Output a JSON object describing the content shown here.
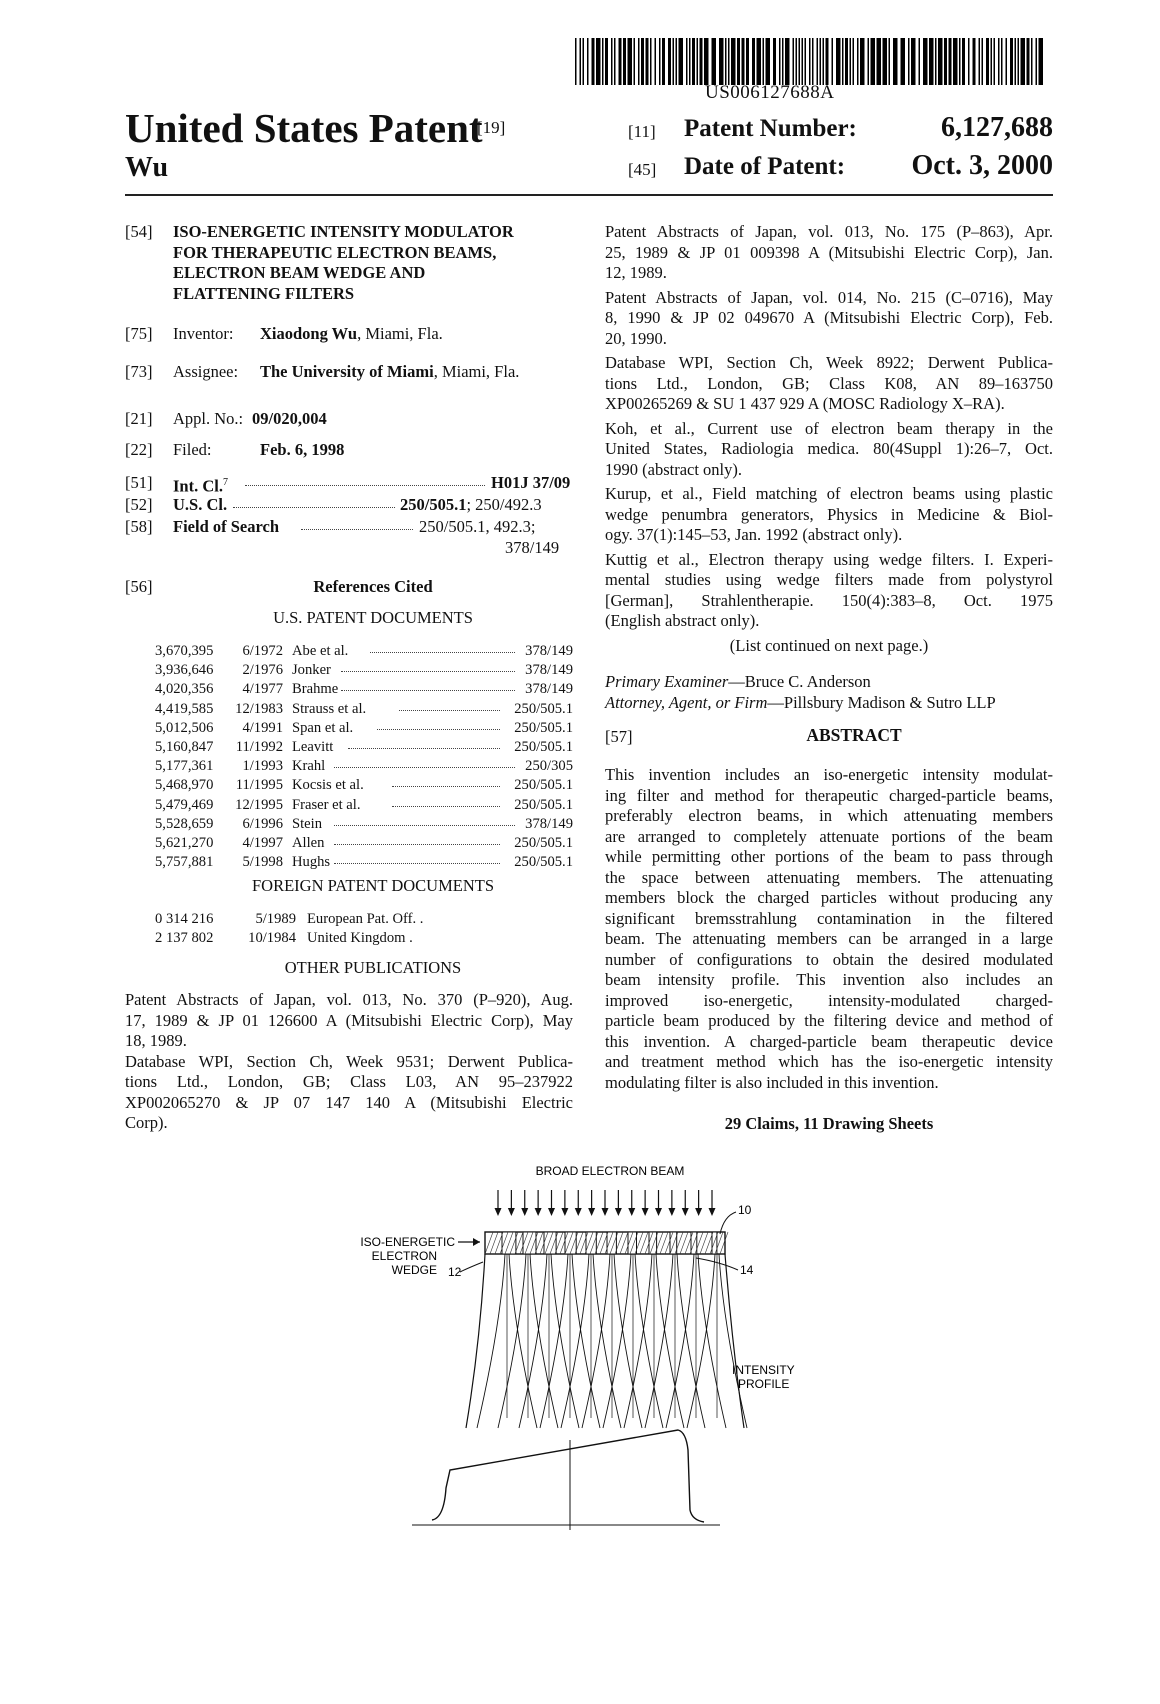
{
  "header": {
    "publication_number": "US006127688A",
    "title": "United States Patent",
    "title_code": "[19]",
    "inventor_surname": "Wu",
    "patent_number_code": "[11]",
    "patent_number_label": "Patent Number:",
    "patent_number": "6,127,688",
    "date_code": "[45]",
    "date_label": "Date of Patent:",
    "date": "Oct. 3, 2000"
  },
  "biblio": {
    "title_code": "[54]",
    "title_lines": [
      "ISO-ENERGETIC INTENSITY MODULATOR",
      "FOR THERAPEUTIC ELECTRON BEAMS,",
      "ELECTRON BEAM WEDGE AND",
      "FLATTENING FILTERS"
    ],
    "inventor_code": "[75]",
    "inventor_label": "Inventor:",
    "inventor_name": "Xiaodong Wu",
    "inventor_location": ", Miami, Fla.",
    "assignee_code": "[73]",
    "assignee_label": "Assignee:",
    "assignee_name": "The University of Miami",
    "assignee_location": ", Miami, Fla.",
    "appl_code": "[21]",
    "appl_label": "Appl. No.:",
    "appl_no": "09/020,004",
    "filed_code": "[22]",
    "filed_label": "Filed:",
    "filed_date": "Feb. 6, 1998",
    "intcl_code": "[51]",
    "intcl_label": "Int. Cl.",
    "intcl_sup": "7",
    "intcl_value": "H01J 37/09",
    "uscl_code": "[52]",
    "uscl_label": "U.S. Cl.",
    "uscl_bold": "250/505.1",
    "uscl_rest": "; 250/492.3",
    "search_code": "[58]",
    "search_label": "Field of Search",
    "search_value": "250/505.1, 492.3;",
    "search_value2": "378/149",
    "refs_code": "[56]",
    "refs_heading": "References Cited",
    "us_docs_heading": "U.S. PATENT DOCUMENTS",
    "foreign_heading": "FOREIGN PATENT DOCUMENTS",
    "other_heading": "OTHER PUBLICATIONS"
  },
  "us_patents": [
    {
      "num": "3,670,395",
      "date": "6/1972",
      "name": "Abe et al.",
      "cls": "378/149"
    },
    {
      "num": "3,936,646",
      "date": "2/1976",
      "name": "Jonker",
      "cls": "378/149"
    },
    {
      "num": "4,020,356",
      "date": "4/1977",
      "name": "Brahme",
      "cls": "378/149"
    },
    {
      "num": "4,419,585",
      "date": "12/1983",
      "name": "Strauss et al.",
      "cls": "250/505.1"
    },
    {
      "num": "5,012,506",
      "date": "4/1991",
      "name": "Span et al.",
      "cls": "250/505.1"
    },
    {
      "num": "5,160,847",
      "date": "11/1992",
      "name": "Leavitt",
      "cls": "250/505.1"
    },
    {
      "num": "5,177,361",
      "date": "1/1993",
      "name": "Krahl",
      "cls": "250/305"
    },
    {
      "num": "5,468,970",
      "date": "11/1995",
      "name": "Kocsis et al.",
      "cls": "250/505.1"
    },
    {
      "num": "5,479,469",
      "date": "12/1995",
      "name": "Fraser et al.",
      "cls": "250/505.1"
    },
    {
      "num": "5,528,659",
      "date": "6/1996",
      "name": "Stein",
      "cls": "378/149"
    },
    {
      "num": "5,621,270",
      "date": "4/1997",
      "name": "Allen",
      "cls": "250/505.1"
    },
    {
      "num": "5,757,881",
      "date": "5/1998",
      "name": "Hughs",
      "cls": "250/505.1"
    }
  ],
  "foreign_patents": [
    {
      "num": "0 314 216",
      "date": "5/1989",
      "name": "European Pat. Off. ."
    },
    {
      "num": "2 137 802",
      "date": "10/1984",
      "name": "United Kingdom ."
    }
  ],
  "other_pubs_left": [
    [
      "Patent Abstracts of Japan, vol. 013, No. 370 (P–920), Aug.",
      "17, 1989 & JP 01 126600 A (Mitsubishi Electric Corp), May",
      "18, 1989."
    ],
    [
      "Database WPI, Section Ch, Week 9531; Derwent Publica-",
      "tions Ltd., London, GB; Class L03, AN 95–237922",
      "XP002065270 & JP 07 147 140 A (Mitsubishi Electric",
      "Corp)."
    ]
  ],
  "other_pubs_right": [
    [
      "Patent Abstracts of Japan, vol. 013, No. 175 (P–863), Apr.",
      "25, 1989 & JP 01 009398 A (Mitsubishi Electric Corp), Jan.",
      "12, 1989."
    ],
    [
      "Patent Abstracts of Japan, vol. 014, No. 215 (C–0716), May",
      "8, 1990 & JP 02 049670 A (Mitsubishi Electric Corp), Feb.",
      "20, 1990."
    ],
    [
      "Database WPI, Section Ch, Week 8922; Derwent Publica-",
      "tions Ltd., London, GB; Class K08, AN 89–163750",
      "XP00265269 & SU 1 437 929 A (MOSC Radiology X–RA)."
    ],
    [
      "Koh, et al., Current use of electron beam therapy in the",
      "United States, Radiologia medica. 80(4Suppl 1):26–7, Oct.",
      "1990 (abstract only)."
    ],
    [
      "Kurup, et al., Field matching of electron beams using plastic",
      "wedge penumbra generators, Physics in Medicine & Biol-",
      "ogy. 37(1):145–53, Jan. 1992 (abstract only)."
    ],
    [
      "Kuttig et al., Electron therapy using wedge filters. I. Experi-",
      "mental studies using wedge filters made from polystyrol",
      "[German], Strahlentherapie. 150(4):383–8, Oct. 1975",
      "(English abstract only)."
    ]
  ],
  "list_continued": "(List continued on next page.)",
  "examiner_label": "Primary Examiner",
  "examiner_name": "—Bruce C. Anderson",
  "attorney_label": "Attorney, Agent, or Firm",
  "attorney_name": "—Pillsbury Madison & Sutro LLP",
  "abstract_code": "[57]",
  "abstract_heading": "ABSTRACT",
  "abstract_lines": [
    "This invention includes an iso-energetic intensity modulat-",
    "ing filter and method for therapeutic charged-particle beams,",
    "preferably electron beams, in which attenuating members",
    "are arranged to completely attenuate portions of the beam",
    "while permitting other portions of the beam to pass through",
    "the space between attenuating members. The attenuating",
    "members block the charged particles without producing any",
    "significant bremsstrahlung contamination in the filtered",
    "beam. The attenuating members can be arranged in a large",
    "number of configurations to obtain the desired modulated",
    "beam intensity profile. This invention also includes an",
    "improved iso-energetic, intensity-modulated charged-",
    "particle beam produced by the filtering device and method of",
    "this invention. A charged-particle beam therapeutic device",
    "and treatment method which has the iso-energetic intensity",
    "modulating filter is also included in this invention."
  ],
  "claims": "29 Claims, 11 Drawing Sheets",
  "figure": {
    "beam_label": "BROAD ELECTRON BEAM",
    "wedge_label_1": "ISO-ENERGETIC",
    "wedge_label_2": "ELECTRON",
    "wedge_label_3": "WEDGE",
    "ref_10": "10",
    "ref_12": "12",
    "ref_14": "14",
    "profile_label_1": "INTENSITY",
    "profile_label_2": "PROFILE"
  }
}
